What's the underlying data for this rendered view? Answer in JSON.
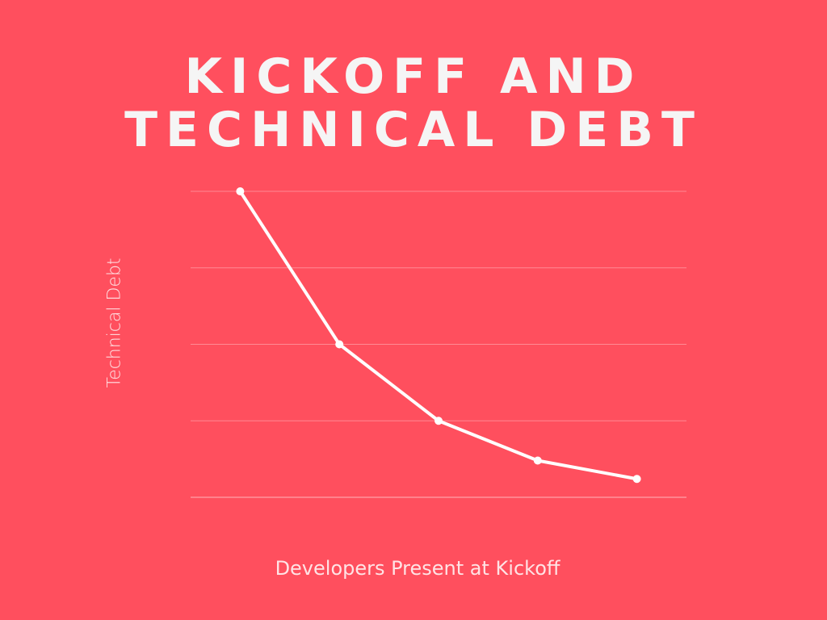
{
  "colors": {
    "background": "#FF4F5E",
    "line": "#FFFFFF",
    "gridline": "#FF8A94",
    "title": "#F5F5F5"
  },
  "chart_data": {
    "type": "line",
    "title_lines": [
      "KICKOFF AND",
      "TECHNICAL DEBT"
    ],
    "xlabel": "Developers Present at Kickoff",
    "ylabel": "Technical Debt",
    "x": [
      1,
      2,
      3,
      4,
      5
    ],
    "values": [
      100,
      50,
      25,
      12,
      6
    ],
    "ylim": [
      0,
      100
    ],
    "xlim": [
      0.5,
      5.5
    ],
    "y_gridlines": [
      0,
      25,
      50,
      75,
      100
    ],
    "grid": true,
    "markers": true,
    "tick_labels_shown": false
  }
}
